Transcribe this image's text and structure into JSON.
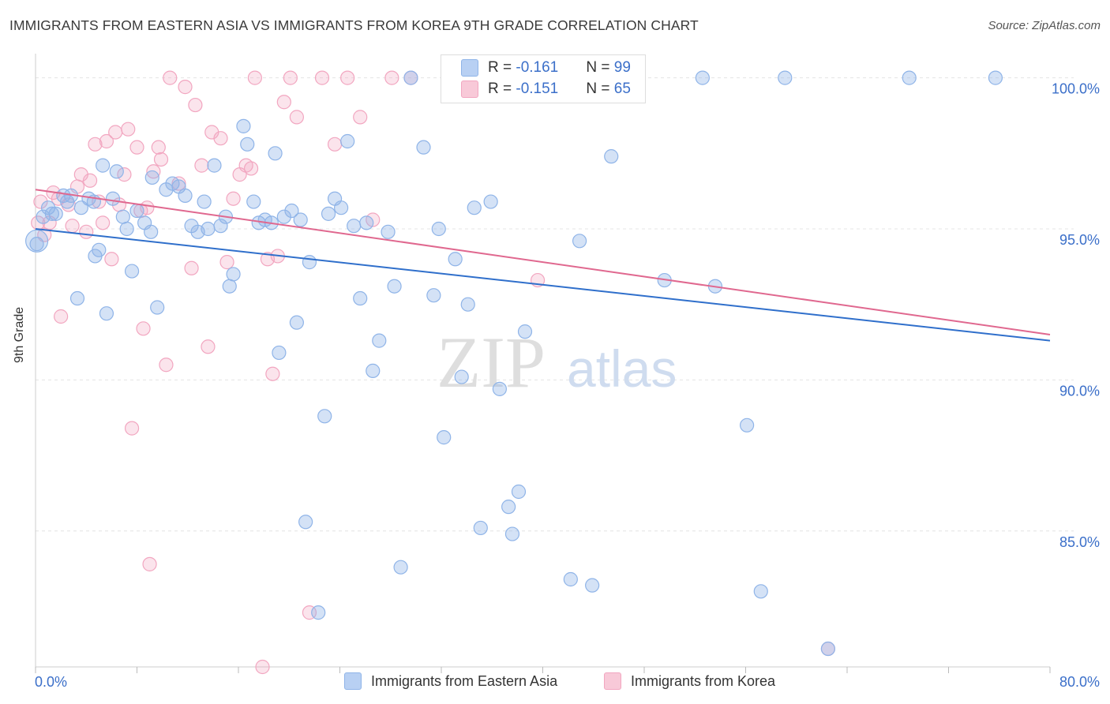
{
  "header": {
    "title": "IMMIGRANTS FROM EASTERN ASIA VS IMMIGRANTS FROM KOREA 9TH GRADE CORRELATION CHART",
    "source": "Source: ZipAtlas.com"
  },
  "watermark": {
    "zip": "ZIP",
    "atlas": "atlas"
  },
  "legend": {
    "eastern_asia": {
      "r_label": "R = ",
      "r_value": "-0.161",
      "n_label": "N = ",
      "n_value": "99"
    },
    "korea": {
      "r_label": "R = ",
      "r_value": "-0.151",
      "n_label": "N = ",
      "n_value": "65"
    }
  },
  "colors": {
    "eastern_asia": "#8fb4e8",
    "eastern_asia_line": "#2f6fcb",
    "korea": "#f2a6c0",
    "korea_line": "#e0688f",
    "axis_text": "#3b6fc9"
  },
  "chart_data": {
    "type": "scatter",
    "title": "IMMIGRANTS FROM EASTERN ASIA VS IMMIGRANTS FROM KOREA 9TH GRADE CORRELATION CHART",
    "xlabel": "",
    "ylabel": "9th Grade",
    "xlim": [
      0,
      80
    ],
    "ylim": [
      80.5,
      100.8
    ],
    "x_ticks": [
      "0.0%",
      "80.0%"
    ],
    "y_ticks": [
      {
        "value": 100,
        "label": "100.0%"
      },
      {
        "value": 95,
        "label": "95.0%"
      },
      {
        "value": 90,
        "label": "90.0%"
      },
      {
        "value": 85,
        "label": "85.0%"
      }
    ],
    "grid": true,
    "legend_position": "top-center",
    "series": [
      {
        "name": "Immigrants from Eastern Asia",
        "trend": [
          [
            0,
            95.0
          ],
          [
            80,
            91.3
          ]
        ],
        "points": [
          [
            0.1,
            94.5
          ],
          [
            0.6,
            95.4
          ],
          [
            1.0,
            95.7
          ],
          [
            1.3,
            95.5
          ],
          [
            1.6,
            95.5
          ],
          [
            2.2,
            96.1
          ],
          [
            2.5,
            95.9
          ],
          [
            2.8,
            96.1
          ],
          [
            3.3,
            92.7
          ],
          [
            3.6,
            95.7
          ],
          [
            4.2,
            96.0
          ],
          [
            4.6,
            95.9
          ],
          [
            5.0,
            94.3
          ],
          [
            5.3,
            97.1
          ],
          [
            5.6,
            92.2
          ],
          [
            6.1,
            96.0
          ],
          [
            6.4,
            96.9
          ],
          [
            6.9,
            95.4
          ],
          [
            7.2,
            95.0
          ],
          [
            7.6,
            93.6
          ],
          [
            8.0,
            95.6
          ],
          [
            8.6,
            95.2
          ],
          [
            9.1,
            94.9
          ],
          [
            9.6,
            92.4
          ],
          [
            10.3,
            96.3
          ],
          [
            10.8,
            96.5
          ],
          [
            11.3,
            96.4
          ],
          [
            11.8,
            96.1
          ],
          [
            12.3,
            95.1
          ],
          [
            12.8,
            94.9
          ],
          [
            13.3,
            95.9
          ],
          [
            13.6,
            95.0
          ],
          [
            14.1,
            97.1
          ],
          [
            14.6,
            95.1
          ],
          [
            15.3,
            93.1
          ],
          [
            15.6,
            93.5
          ],
          [
            16.4,
            98.4
          ],
          [
            16.7,
            97.8
          ],
          [
            17.2,
            95.9
          ],
          [
            17.6,
            95.2
          ],
          [
            18.1,
            95.3
          ],
          [
            18.6,
            95.2
          ],
          [
            18.9,
            97.5
          ],
          [
            19.2,
            90.9
          ],
          [
            19.6,
            95.4
          ],
          [
            20.2,
            95.6
          ],
          [
            20.6,
            91.9
          ],
          [
            20.9,
            95.3
          ],
          [
            21.3,
            85.3
          ],
          [
            21.6,
            93.9
          ],
          [
            22.3,
            82.3
          ],
          [
            22.8,
            88.8
          ],
          [
            23.1,
            95.5
          ],
          [
            23.6,
            96.0
          ],
          [
            24.1,
            95.7
          ],
          [
            24.6,
            97.9
          ],
          [
            25.1,
            95.1
          ],
          [
            25.6,
            92.7
          ],
          [
            26.1,
            95.2
          ],
          [
            26.6,
            90.3
          ],
          [
            27.1,
            91.3
          ],
          [
            27.8,
            94.9
          ],
          [
            28.3,
            93.1
          ],
          [
            28.8,
            83.8
          ],
          [
            29.6,
            100.0
          ],
          [
            30.6,
            97.7
          ],
          [
            31.4,
            92.8
          ],
          [
            31.8,
            95.0
          ],
          [
            32.2,
            88.1
          ],
          [
            33.1,
            94.0
          ],
          [
            33.6,
            90.1
          ],
          [
            34.1,
            92.5
          ],
          [
            34.6,
            95.7
          ],
          [
            35.1,
            85.1
          ],
          [
            35.9,
            95.9
          ],
          [
            36.6,
            89.7
          ],
          [
            37.3,
            85.8
          ],
          [
            37.6,
            84.9
          ],
          [
            38.1,
            86.3
          ],
          [
            38.6,
            91.6
          ],
          [
            40.1,
            100.0
          ],
          [
            41.1,
            100.0
          ],
          [
            42.2,
            83.4
          ],
          [
            42.9,
            94.6
          ],
          [
            43.9,
            83.2
          ],
          [
            45.4,
            97.4
          ],
          [
            47.3,
            100.0
          ],
          [
            49.6,
            93.3
          ],
          [
            52.6,
            100.0
          ],
          [
            53.6,
            93.1
          ],
          [
            56.1,
            88.5
          ],
          [
            57.2,
            83.0
          ],
          [
            59.1,
            100.0
          ],
          [
            62.5,
            81.1
          ],
          [
            68.9,
            100.0
          ],
          [
            75.7,
            100.0
          ],
          [
            4.7,
            94.1
          ],
          [
            9.2,
            96.7
          ],
          [
            15.0,
            95.4
          ]
        ]
      },
      {
        "name": "Immigrants from Korea",
        "trend": [
          [
            0,
            96.3
          ],
          [
            80,
            91.5
          ]
        ],
        "points": [
          [
            0.2,
            95.2
          ],
          [
            0.4,
            95.9
          ],
          [
            0.7,
            94.8
          ],
          [
            1.1,
            95.2
          ],
          [
            1.4,
            96.2
          ],
          [
            1.8,
            96.0
          ],
          [
            2.0,
            92.1
          ],
          [
            2.6,
            95.8
          ],
          [
            2.9,
            95.1
          ],
          [
            3.3,
            96.4
          ],
          [
            3.6,
            96.8
          ],
          [
            4.0,
            94.9
          ],
          [
            4.3,
            96.6
          ],
          [
            4.7,
            97.8
          ],
          [
            5.0,
            95.9
          ],
          [
            5.3,
            95.2
          ],
          [
            5.6,
            97.9
          ],
          [
            6.0,
            94.0
          ],
          [
            6.3,
            98.2
          ],
          [
            6.6,
            95.8
          ],
          [
            7.0,
            96.8
          ],
          [
            7.3,
            98.3
          ],
          [
            7.6,
            88.4
          ],
          [
            8.0,
            97.7
          ],
          [
            8.3,
            95.6
          ],
          [
            8.5,
            91.7
          ],
          [
            8.8,
            95.7
          ],
          [
            9.0,
            83.9
          ],
          [
            9.3,
            96.9
          ],
          [
            9.7,
            97.7
          ],
          [
            9.9,
            97.3
          ],
          [
            10.3,
            90.5
          ],
          [
            10.6,
            100.0
          ],
          [
            11.3,
            96.5
          ],
          [
            11.8,
            99.7
          ],
          [
            12.3,
            93.7
          ],
          [
            12.6,
            99.1
          ],
          [
            13.1,
            97.1
          ],
          [
            13.6,
            91.1
          ],
          [
            13.9,
            98.2
          ],
          [
            14.6,
            98.0
          ],
          [
            15.1,
            93.9
          ],
          [
            15.6,
            96.0
          ],
          [
            16.1,
            96.8
          ],
          [
            16.6,
            97.1
          ],
          [
            17.0,
            97.0
          ],
          [
            17.3,
            100.0
          ],
          [
            17.9,
            80.5
          ],
          [
            18.3,
            94.0
          ],
          [
            18.7,
            90.2
          ],
          [
            19.1,
            94.1
          ],
          [
            19.6,
            99.2
          ],
          [
            20.1,
            100.0
          ],
          [
            20.6,
            98.7
          ],
          [
            21.6,
            82.3
          ],
          [
            22.6,
            100.0
          ],
          [
            23.6,
            97.8
          ],
          [
            24.6,
            100.0
          ],
          [
            25.6,
            98.7
          ],
          [
            26.6,
            95.3
          ],
          [
            28.1,
            100.0
          ],
          [
            29.6,
            100.0
          ],
          [
            37.6,
            100.0
          ],
          [
            39.6,
            93.3
          ],
          [
            62.5,
            81.1
          ]
        ]
      }
    ]
  },
  "bottom_legend": {
    "eastern_asia_label": "Immigrants from Eastern Asia",
    "korea_label": "Immigrants from Korea"
  }
}
